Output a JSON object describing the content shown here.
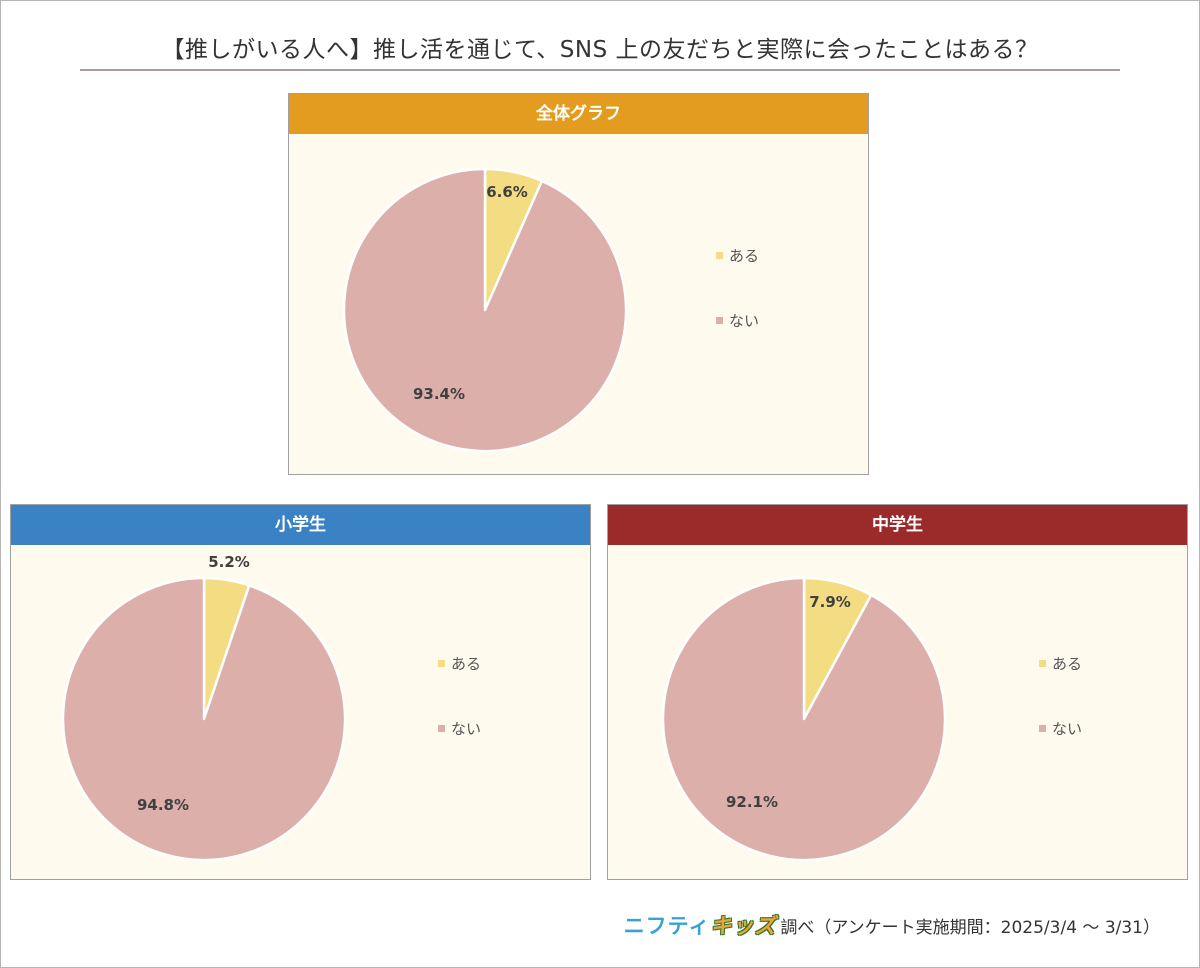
{
  "title": "【推しがいる人へ】推し活を通じて、SNS 上の友だちと実際に会ったことはある？",
  "colors": {
    "aru": "#f4dc82",
    "nai": "#dcafaa",
    "panel_bg": "#fffaee"
  },
  "chart_data": [
    {
      "type": "pie",
      "title": "全体グラフ",
      "header_color": "#e39c1f",
      "slices": [
        {
          "label": "ある",
          "value": 6.6,
          "display": "6.6%"
        },
        {
          "label": "ない",
          "value": 93.4,
          "display": "93.4%"
        }
      ],
      "legend": [
        "ある",
        "ない"
      ],
      "legend_position": "right"
    },
    {
      "type": "pie",
      "title": "小学生",
      "header_color": "#3a82c4",
      "slices": [
        {
          "label": "ある",
          "value": 5.2,
          "display": "5.2%"
        },
        {
          "label": "ない",
          "value": 94.8,
          "display": "94.8%"
        }
      ],
      "legend": [
        "ある",
        "ない"
      ],
      "legend_position": "right"
    },
    {
      "type": "pie",
      "title": "中学生",
      "header_color": "#9b2b2b",
      "slices": [
        {
          "label": "ある",
          "value": 7.9,
          "display": "7.9%"
        },
        {
          "label": "ない",
          "value": 92.1,
          "display": "92.1%"
        }
      ],
      "legend": [
        "ある",
        "ない"
      ],
      "legend_position": "right"
    }
  ],
  "footer": {
    "logo_part1": "ニフティ",
    "logo_part2": "キッズ",
    "text": "調べ（アンケート実施期間：2025/3/4 ～ 3/31）"
  }
}
